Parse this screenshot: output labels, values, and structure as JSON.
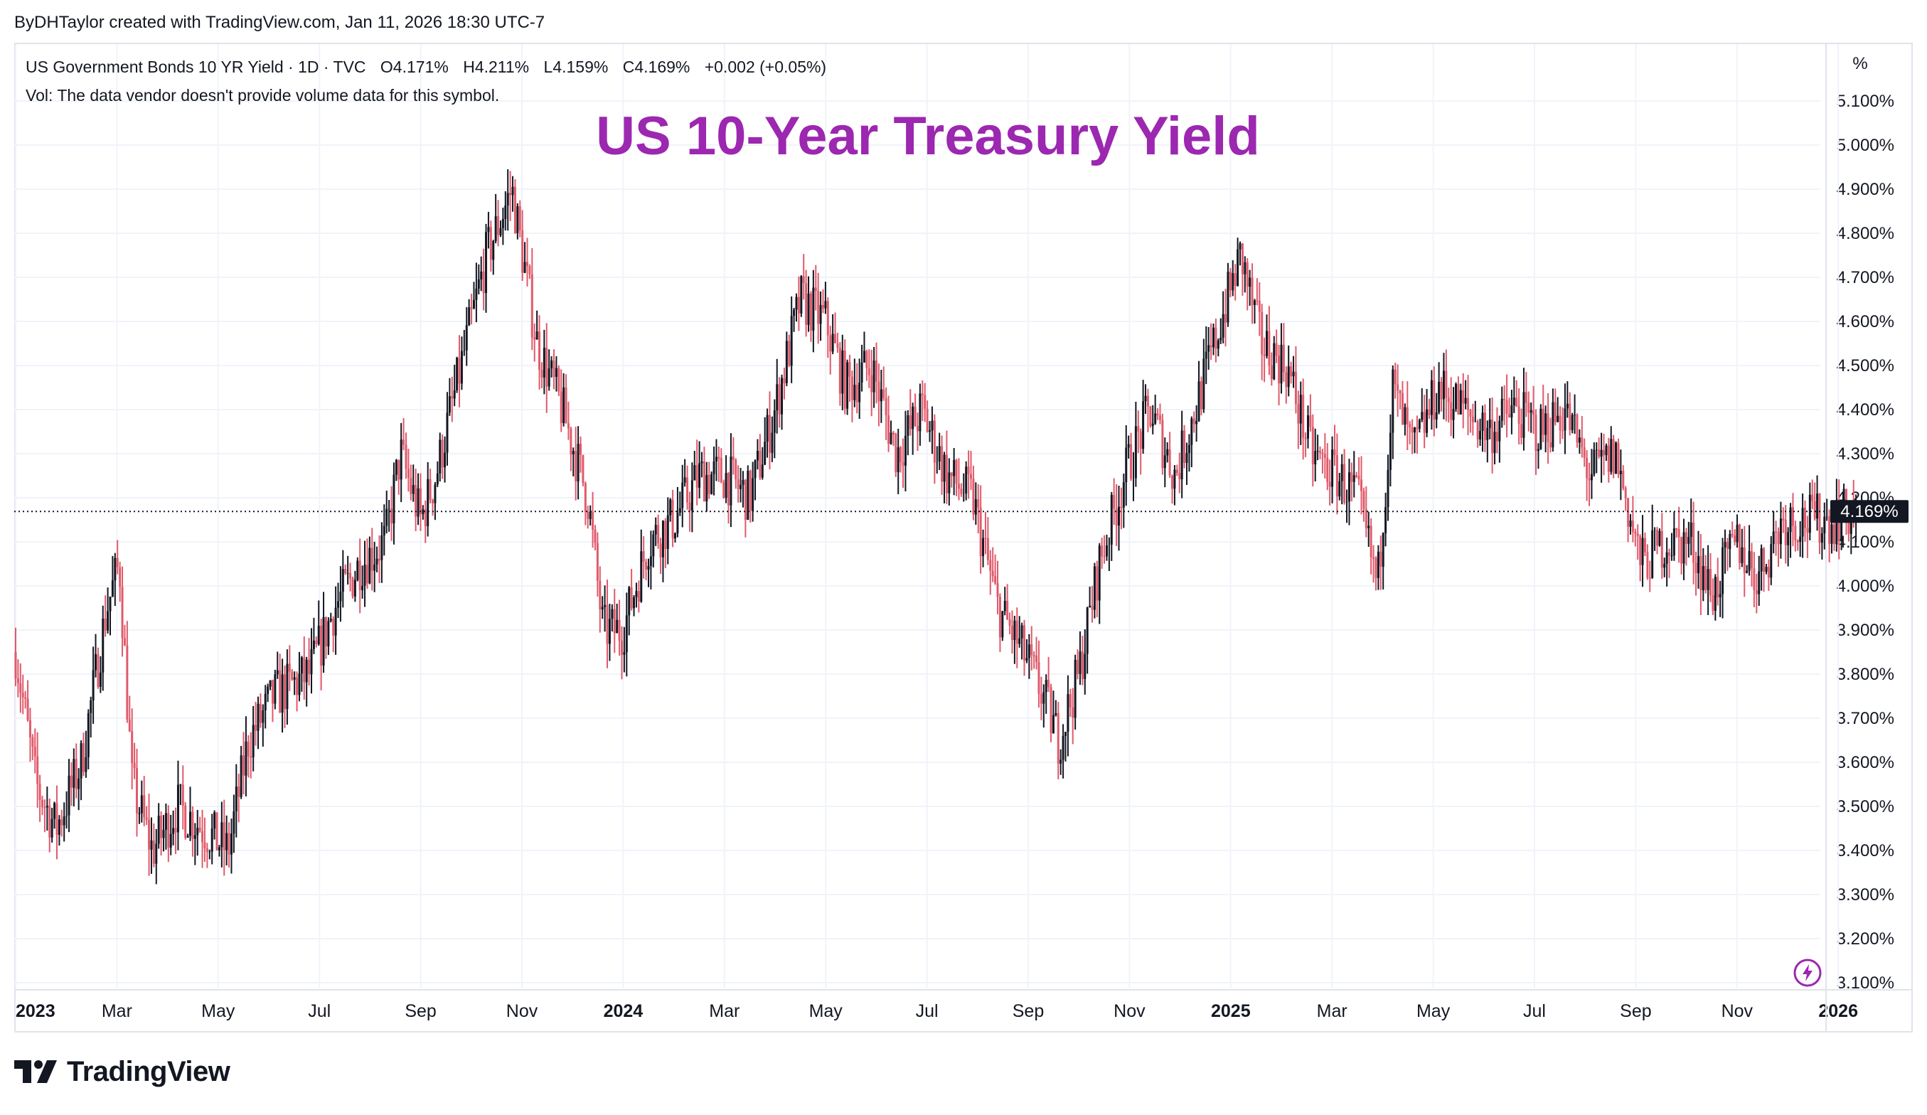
{
  "header": {
    "credit": "ByDHTaylor created with TradingView.com, Jan 11, 2026 18:30 UTC-7"
  },
  "legend": {
    "symbol_line": "US Government Bonds 10 YR Yield · 1D · TVC",
    "open": "O4.171%",
    "high": "H4.211%",
    "low": "L4.159%",
    "close": "C4.169%",
    "change": "+0.002 (+0.05%)",
    "volume_note": "Vol: The data vendor doesn't provide volume data for this symbol."
  },
  "title": "US 10-Year Treasury Yield",
  "price_scale": {
    "unit": "%",
    "last_price_label": "4.169%",
    "ticks": [
      "5.100%",
      "5.000%",
      "4.900%",
      "4.800%",
      "4.700%",
      "4.600%",
      "4.500%",
      "4.400%",
      "4.300%",
      "4.200%",
      "4.100%",
      "4.000%",
      "3.900%",
      "3.800%",
      "3.700%",
      "3.600%",
      "3.500%",
      "3.400%",
      "3.300%",
      "3.200%",
      "3.100%"
    ]
  },
  "footer": {
    "brand": "TradingView"
  },
  "colors": {
    "up": "#131722",
    "down": "#e05a6b",
    "title": "#9c27b0",
    "grid": "#f0f3fa",
    "price_tag": "#131722"
  },
  "chart_data": {
    "type": "candlestick",
    "title": "US 10-Year Treasury Yield",
    "ylabel": "%",
    "ylim": [
      3.05,
      5.15
    ],
    "last_close": 4.169,
    "time_labels": [
      {
        "label": "2023",
        "t": 0.0,
        "bold": true
      },
      {
        "label": "Mar",
        "t": 2.0,
        "bold": false
      },
      {
        "label": "May",
        "t": 4.0,
        "bold": false
      },
      {
        "label": "Jul",
        "t": 6.0,
        "bold": false
      },
      {
        "label": "Sep",
        "t": 8.0,
        "bold": false
      },
      {
        "label": "Nov",
        "t": 10.0,
        "bold": false
      },
      {
        "label": "2024",
        "t": 12.0,
        "bold": true
      },
      {
        "label": "Mar",
        "t": 14.0,
        "bold": false
      },
      {
        "label": "May",
        "t": 16.0,
        "bold": false
      },
      {
        "label": "Jul",
        "t": 18.0,
        "bold": false
      },
      {
        "label": "Sep",
        "t": 20.0,
        "bold": false
      },
      {
        "label": "Nov",
        "t": 22.0,
        "bold": false
      },
      {
        "label": "2025",
        "t": 24.0,
        "bold": true
      },
      {
        "label": "Mar",
        "t": 26.0,
        "bold": false
      },
      {
        "label": "May",
        "t": 28.0,
        "bold": false
      },
      {
        "label": "Jul",
        "t": 30.0,
        "bold": false
      },
      {
        "label": "Sep",
        "t": 32.0,
        "bold": false
      },
      {
        "label": "Nov",
        "t": 34.0,
        "bold": false
      },
      {
        "label": "2026",
        "t": 36.0,
        "bold": true
      }
    ],
    "t_range": [
      0.0,
      36.35
    ],
    "close_path_monthly": [
      {
        "t": 0.0,
        "y": 3.85
      },
      {
        "t": 0.4,
        "y": 3.55
      },
      {
        "t": 0.8,
        "y": 3.45
      },
      {
        "t": 1.3,
        "y": 3.6
      },
      {
        "t": 1.8,
        "y": 3.95
      },
      {
        "t": 2.05,
        "y": 4.05
      },
      {
        "t": 2.3,
        "y": 3.55
      },
      {
        "t": 2.7,
        "y": 3.4
      },
      {
        "t": 3.2,
        "y": 3.5
      },
      {
        "t": 3.7,
        "y": 3.45
      },
      {
        "t": 4.2,
        "y": 3.4
      },
      {
        "t": 4.6,
        "y": 3.65
      },
      {
        "t": 5.1,
        "y": 3.75
      },
      {
        "t": 5.8,
        "y": 3.8
      },
      {
        "t": 6.3,
        "y": 3.95
      },
      {
        "t": 6.8,
        "y": 4.05
      },
      {
        "t": 7.3,
        "y": 4.1
      },
      {
        "t": 7.6,
        "y": 4.3
      },
      {
        "t": 8.0,
        "y": 4.15
      },
      {
        "t": 8.3,
        "y": 4.25
      },
      {
        "t": 8.8,
        "y": 4.5
      },
      {
        "t": 9.3,
        "y": 4.75
      },
      {
        "t": 9.8,
        "y": 4.9
      },
      {
        "t": 10.3,
        "y": 4.55
      },
      {
        "t": 10.8,
        "y": 4.4
      },
      {
        "t": 11.3,
        "y": 4.2
      },
      {
        "t": 11.6,
        "y": 3.9
      },
      {
        "t": 12.0,
        "y": 3.9
      },
      {
        "t": 12.5,
        "y": 4.1
      },
      {
        "t": 13.0,
        "y": 4.15
      },
      {
        "t": 13.5,
        "y": 4.25
      },
      {
        "t": 14.0,
        "y": 4.25
      },
      {
        "t": 14.5,
        "y": 4.2
      },
      {
        "t": 15.0,
        "y": 4.4
      },
      {
        "t": 15.5,
        "y": 4.65
      },
      {
        "t": 16.0,
        "y": 4.6
      },
      {
        "t": 16.4,
        "y": 4.45
      },
      {
        "t": 16.9,
        "y": 4.5
      },
      {
        "t": 17.4,
        "y": 4.3
      },
      {
        "t": 17.9,
        "y": 4.4
      },
      {
        "t": 18.4,
        "y": 4.25
      },
      {
        "t": 18.9,
        "y": 4.2
      },
      {
        "t": 19.4,
        "y": 3.95
      },
      {
        "t": 19.9,
        "y": 3.85
      },
      {
        "t": 20.3,
        "y": 3.75
      },
      {
        "t": 20.6,
        "y": 3.65
      },
      {
        "t": 21.0,
        "y": 3.8
      },
      {
        "t": 21.4,
        "y": 4.05
      },
      {
        "t": 21.9,
        "y": 4.25
      },
      {
        "t": 22.4,
        "y": 4.4
      },
      {
        "t": 22.9,
        "y": 4.25
      },
      {
        "t": 23.3,
        "y": 4.4
      },
      {
        "t": 23.8,
        "y": 4.6
      },
      {
        "t": 24.2,
        "y": 4.75
      },
      {
        "t": 24.6,
        "y": 4.55
      },
      {
        "t": 25.1,
        "y": 4.5
      },
      {
        "t": 25.6,
        "y": 4.3
      },
      {
        "t": 26.1,
        "y": 4.25
      },
      {
        "t": 26.5,
        "y": 4.2
      },
      {
        "t": 26.9,
        "y": 4.0
      },
      {
        "t": 27.2,
        "y": 4.45
      },
      {
        "t": 27.6,
        "y": 4.3
      },
      {
        "t": 28.1,
        "y": 4.45
      },
      {
        "t": 28.6,
        "y": 4.4
      },
      {
        "t": 29.1,
        "y": 4.35
      },
      {
        "t": 29.6,
        "y": 4.4
      },
      {
        "t": 30.1,
        "y": 4.35
      },
      {
        "t": 30.6,
        "y": 4.4
      },
      {
        "t": 31.1,
        "y": 4.25
      },
      {
        "t": 31.6,
        "y": 4.3
      },
      {
        "t": 32.1,
        "y": 4.05
      },
      {
        "t": 32.6,
        "y": 4.1
      },
      {
        "t": 33.1,
        "y": 4.1
      },
      {
        "t": 33.5,
        "y": 3.98
      },
      {
        "t": 34.0,
        "y": 4.1
      },
      {
        "t": 34.4,
        "y": 4.02
      },
      {
        "t": 34.9,
        "y": 4.15
      },
      {
        "t": 35.4,
        "y": 4.15
      },
      {
        "t": 35.9,
        "y": 4.15
      },
      {
        "t": 36.3,
        "y": 4.17
      }
    ]
  }
}
